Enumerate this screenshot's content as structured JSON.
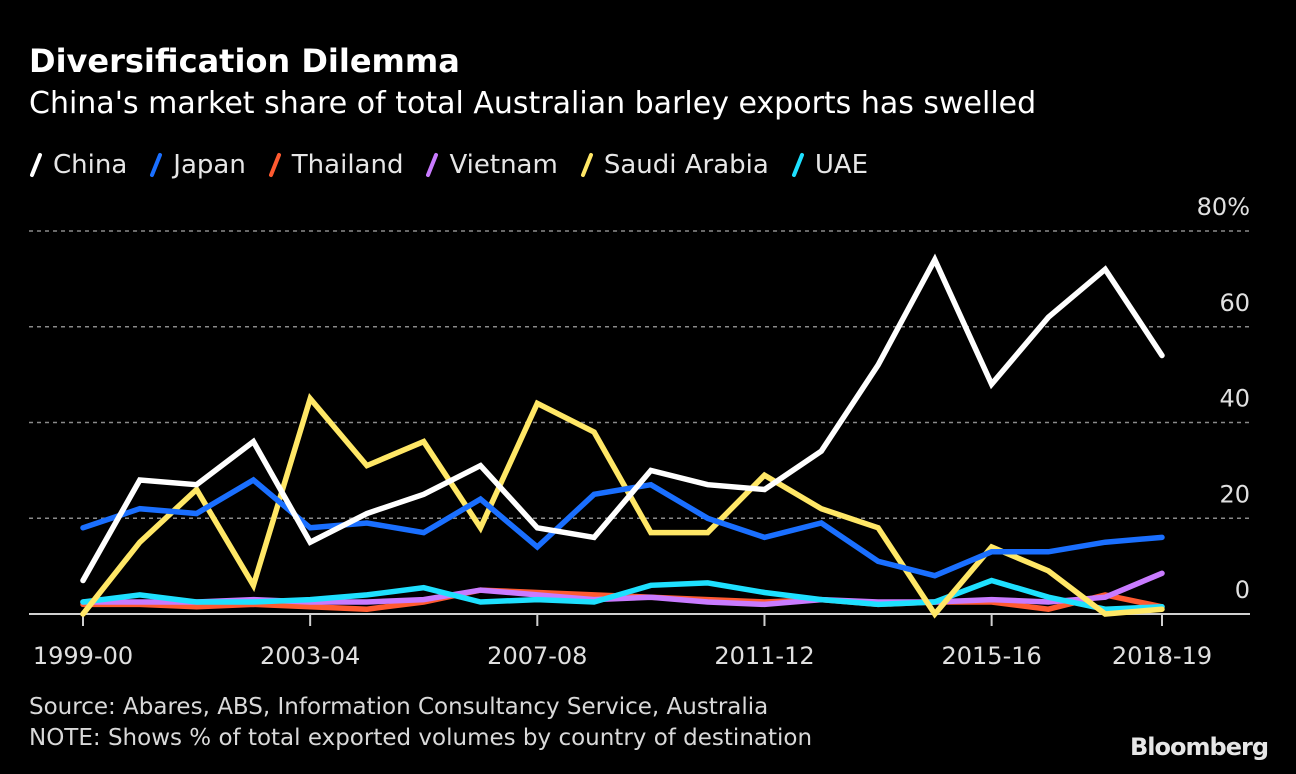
{
  "header": {
    "title": "Diversification Dilemma",
    "subtitle": "China's market share of total Australian barley exports has swelled"
  },
  "footer": {
    "source": "Source: Abares, ABS, Information Consultancy Service, Australia",
    "note": "NOTE: Shows % of total exported volumes by country of destination",
    "brand": "Bloomberg"
  },
  "chart_data": {
    "type": "line",
    "title": "Diversification Dilemma",
    "subtitle": "China's market share of total Australian barley exports has swelled",
    "xlabel": "",
    "ylabel": "",
    "ylim": [
      0,
      80
    ],
    "y_ticks": [
      0,
      20,
      40,
      60,
      80
    ],
    "y_tick_labels": [
      "0",
      "20",
      "40",
      "60",
      "80%"
    ],
    "x": [
      "1999-00",
      "2000-01",
      "2001-02",
      "2002-03",
      "2003-04",
      "2004-05",
      "2005-06",
      "2006-07",
      "2007-08",
      "2008-09",
      "2009-10",
      "2010-11",
      "2011-12",
      "2012-13",
      "2013-14",
      "2014-15",
      "2015-16",
      "2016-17",
      "2017-18",
      "2018-19"
    ],
    "x_tick_labels": [
      "1999-00",
      "2003-04",
      "2007-08",
      "2011-12",
      "2015-16",
      "2018-19"
    ],
    "grid": true,
    "legend_position": "top-left",
    "series": [
      {
        "name": "China",
        "color": "#ffffff",
        "values": [
          7,
          28,
          27,
          36,
          15,
          21,
          25,
          31,
          18,
          16,
          30,
          27,
          26,
          34,
          52,
          74,
          48,
          62,
          72,
          54
        ]
      },
      {
        "name": "Japan",
        "color": "#1a6fff",
        "values": [
          18,
          22,
          21,
          28,
          18,
          19,
          17,
          24,
          14,
          25,
          27,
          20,
          16,
          19,
          11,
          8,
          13,
          13,
          15,
          16
        ]
      },
      {
        "name": "Thailand",
        "color": "#ff5a30",
        "values": [
          2,
          2,
          1.5,
          2,
          1.5,
          1,
          2.5,
          5,
          4.5,
          4,
          3.5,
          3,
          2.5,
          3,
          2,
          2.5,
          2.5,
          1,
          4,
          1.5
        ]
      },
      {
        "name": "Vietnam",
        "color": "#c97bff",
        "values": [
          2.5,
          2.5,
          2.5,
          3,
          2.5,
          2.5,
          3,
          5,
          4,
          3,
          3.5,
          2.5,
          2,
          3,
          2.5,
          2.5,
          3,
          2.5,
          3.5,
          8.5
        ]
      },
      {
        "name": "Saudi Arabia",
        "color": "#ffe766",
        "values": [
          0,
          15,
          26,
          6,
          45,
          31,
          36,
          18,
          44,
          38,
          17,
          17,
          29,
          22,
          18,
          0,
          14,
          9,
          0,
          1
        ]
      },
      {
        "name": "UAE",
        "color": "#1ee0ff",
        "values": [
          2.5,
          4,
          2.5,
          2.5,
          3,
          4,
          5.5,
          2.5,
          3,
          2.5,
          6,
          6.5,
          4.5,
          3,
          2,
          2.5,
          7,
          3.5,
          1,
          1.5
        ]
      }
    ]
  }
}
